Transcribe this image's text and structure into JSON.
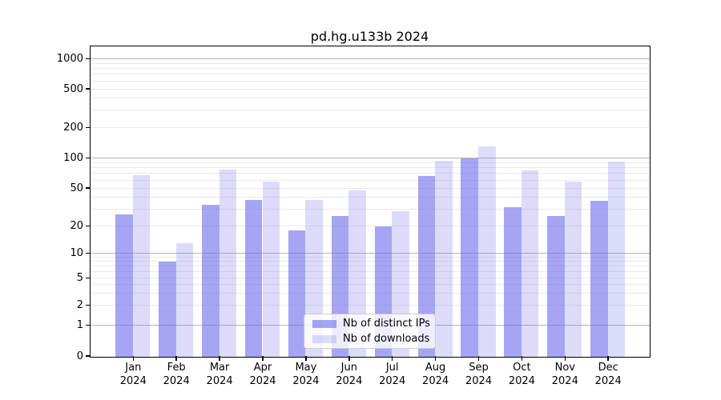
{
  "title": "pd.hg.u133b 2024",
  "colors": {
    "distinct_ips_fill": "rgba(110,110,235,0.62)",
    "downloads_fill": "rgba(110,110,235,0.24)",
    "major_gridline": "#b4b4b4",
    "minor_gridline": "#eaeaea",
    "axis_color": "#000000",
    "legend_border": "#cccccc"
  },
  "chart_data": {
    "type": "bar",
    "title": "pd.hg.u133b 2024",
    "categories": [
      "Jan 2024",
      "Feb 2024",
      "Mar 2024",
      "Apr 2024",
      "May 2024",
      "Jun 2024",
      "Jul 2024",
      "Aug 2024",
      "Sep 2024",
      "Oct 2024",
      "Nov 2024",
      "Dec 2024"
    ],
    "series": [
      {
        "name": "Nb of distinct IPs",
        "values": [
          27,
          8,
          34,
          38,
          18,
          26,
          20,
          66,
          100,
          32,
          26,
          37
        ]
      },
      {
        "name": "Nb of downloads",
        "values": [
          68,
          13,
          77,
          58,
          38,
          48,
          29,
          95,
          130,
          76,
          58,
          92
        ]
      }
    ],
    "y_ticks": [
      0,
      1,
      2,
      5,
      10,
      20,
      50,
      100,
      200,
      500,
      1000
    ],
    "y_scale": "symlog",
    "ylim": [
      0,
      1300
    ],
    "grid": true,
    "legend_position": "lower center"
  }
}
